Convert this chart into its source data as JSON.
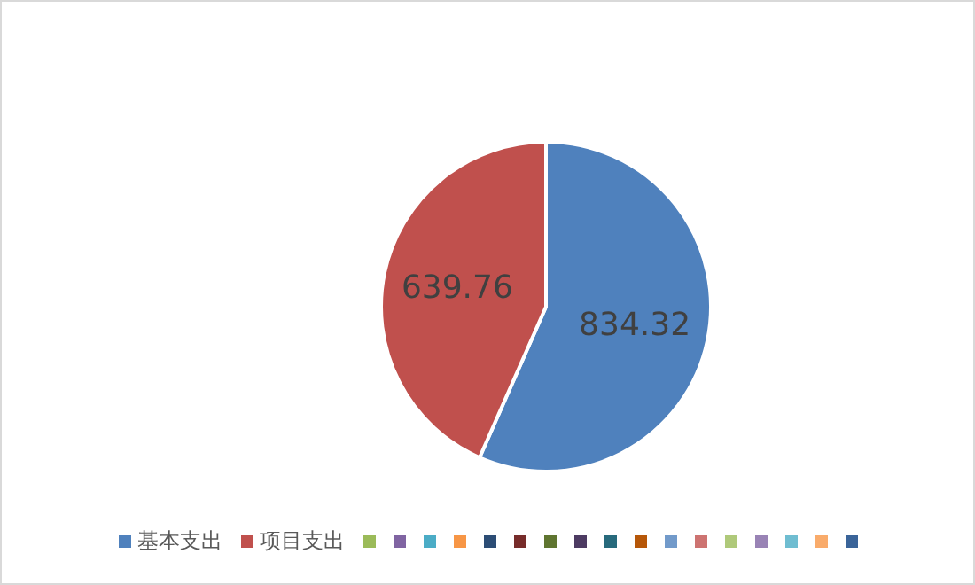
{
  "chart_data": {
    "type": "pie",
    "categories": [
      "基本支出",
      "项目支出",
      null,
      null,
      null,
      null,
      null,
      null,
      null,
      null,
      null,
      null,
      null,
      null,
      null,
      null,
      null,
      null,
      null
    ],
    "values": [
      834.32,
      639.76,
      null,
      null,
      null,
      null,
      null,
      null,
      null,
      null,
      null,
      null,
      null,
      null,
      null,
      null,
      null,
      null,
      null
    ],
    "colors": [
      "#4f81bd",
      "#c0504d",
      "#9bbb59",
      "#8064a2",
      "#4bacc6",
      "#f79646",
      "#2c4d75",
      "#772c2a",
      "#5f7530",
      "#4d3b62",
      "#276a7c",
      "#b65708",
      "#729aca",
      "#cd7371",
      "#afc97a",
      "#9983b5",
      "#6fbdd1",
      "#f9ab6b",
      "#3a6499"
    ],
    "data_labels": true,
    "legend": "bottom"
  }
}
